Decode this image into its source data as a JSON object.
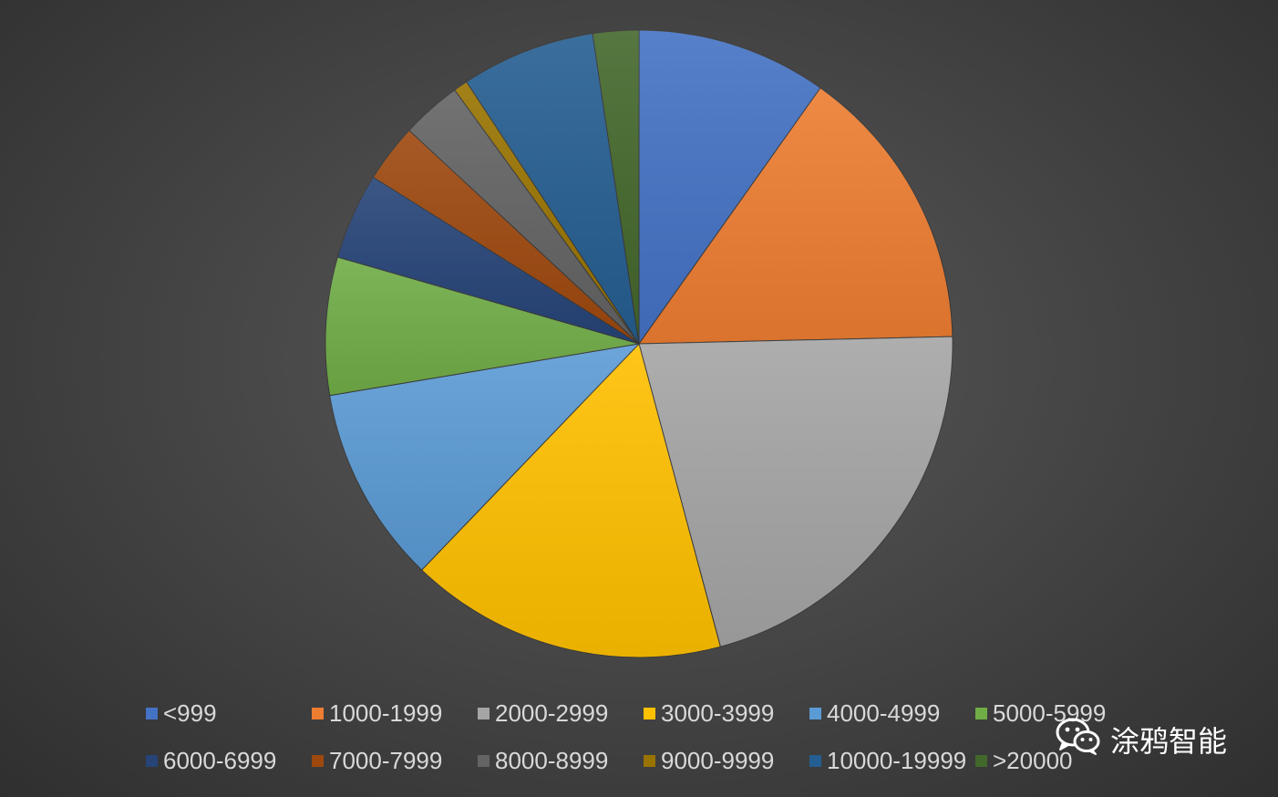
{
  "chart_data": {
    "type": "pie",
    "title": "",
    "categories": [
      "<999",
      "1000-1999",
      "2000-2999",
      "3000-3999",
      "4000-4999",
      "5000-5999",
      "6000-6999",
      "7000-7999",
      "8000-8999",
      "9000-9999",
      "10000-19999",
      ">20000"
    ],
    "values": [
      10.8,
      16.3,
      23.3,
      18.0,
      11.2,
      7.8,
      4.9,
      3.3,
      3.4,
      0.8,
      7.6,
      2.6
    ],
    "unit": "%",
    "colors": [
      "#4472c4",
      "#ed7d31",
      "#a5a5a5",
      "#ffc000",
      "#5b9bd5",
      "#70ad47",
      "#264478",
      "#9e480e",
      "#636363",
      "#997300",
      "#255e91",
      "#43682b"
    ],
    "start_angle": "12 o'clock",
    "direction": "clockwise",
    "legend_position": "bottom",
    "legend_columns": 6
  },
  "watermark": {
    "text": "涂鸦智能",
    "icon": "wechat-icon"
  }
}
